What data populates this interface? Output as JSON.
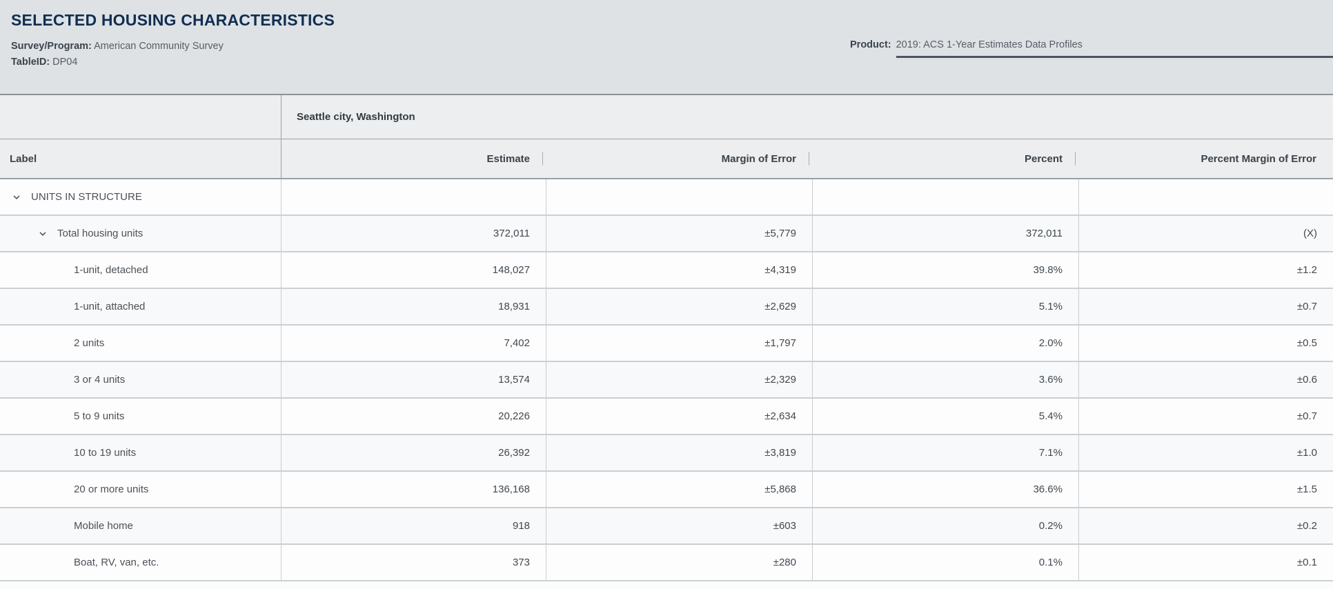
{
  "accent_colors": {
    "title_navy": "#112e51",
    "page_header_bg": "#dee2e5",
    "table_header_bg": "#eceeef",
    "product_underline": "#4a545f"
  },
  "page": {
    "title": "SELECTED HOUSING CHARACTERISTICS",
    "survey_label": "Survey/Program:",
    "survey_value": "American Community Survey",
    "tableid_label": "TableID:",
    "tableid_value": "DP04",
    "product_label": "Product:",
    "product_value": "2019: ACS 1-Year Estimates Data Profiles"
  },
  "icons": {
    "chevron_down": "chevron-down-icon"
  },
  "table": {
    "geo_header": "Seattle city, Washington",
    "columns": [
      "Label",
      "Estimate",
      "Margin of Error",
      "Percent",
      "Percent Margin of Error"
    ],
    "rows": [
      {
        "label": "UNITS IN STRUCTURE",
        "level": 1,
        "chevron": true,
        "estimate": "",
        "moe": "",
        "percent": "",
        "pmoe": ""
      },
      {
        "label": "Total housing units",
        "level": 2,
        "chevron": true,
        "estimate": "372,011",
        "moe": "±5,779",
        "percent": "372,011",
        "pmoe": "(X)"
      },
      {
        "label": "1-unit, detached",
        "level": 3,
        "chevron": false,
        "estimate": "148,027",
        "moe": "±4,319",
        "percent": "39.8%",
        "pmoe": "±1.2"
      },
      {
        "label": "1-unit, attached",
        "level": 3,
        "chevron": false,
        "estimate": "18,931",
        "moe": "±2,629",
        "percent": "5.1%",
        "pmoe": "±0.7"
      },
      {
        "label": "2 units",
        "level": 3,
        "chevron": false,
        "estimate": "7,402",
        "moe": "±1,797",
        "percent": "2.0%",
        "pmoe": "±0.5"
      },
      {
        "label": "3 or 4 units",
        "level": 3,
        "chevron": false,
        "estimate": "13,574",
        "moe": "±2,329",
        "percent": "3.6%",
        "pmoe": "±0.6"
      },
      {
        "label": "5 to 9 units",
        "level": 3,
        "chevron": false,
        "estimate": "20,226",
        "moe": "±2,634",
        "percent": "5.4%",
        "pmoe": "±0.7"
      },
      {
        "label": "10 to 19 units",
        "level": 3,
        "chevron": false,
        "estimate": "26,392",
        "moe": "±3,819",
        "percent": "7.1%",
        "pmoe": "±1.0"
      },
      {
        "label": "20 or more units",
        "level": 3,
        "chevron": false,
        "estimate": "136,168",
        "moe": "±5,868",
        "percent": "36.6%",
        "pmoe": "±1.5"
      },
      {
        "label": "Mobile home",
        "level": 3,
        "chevron": false,
        "estimate": "918",
        "moe": "±603",
        "percent": "0.2%",
        "pmoe": "±0.2"
      },
      {
        "label": "Boat, RV, van, etc.",
        "level": 3,
        "chevron": false,
        "estimate": "373",
        "moe": "±280",
        "percent": "0.1%",
        "pmoe": "±0.1"
      }
    ]
  }
}
